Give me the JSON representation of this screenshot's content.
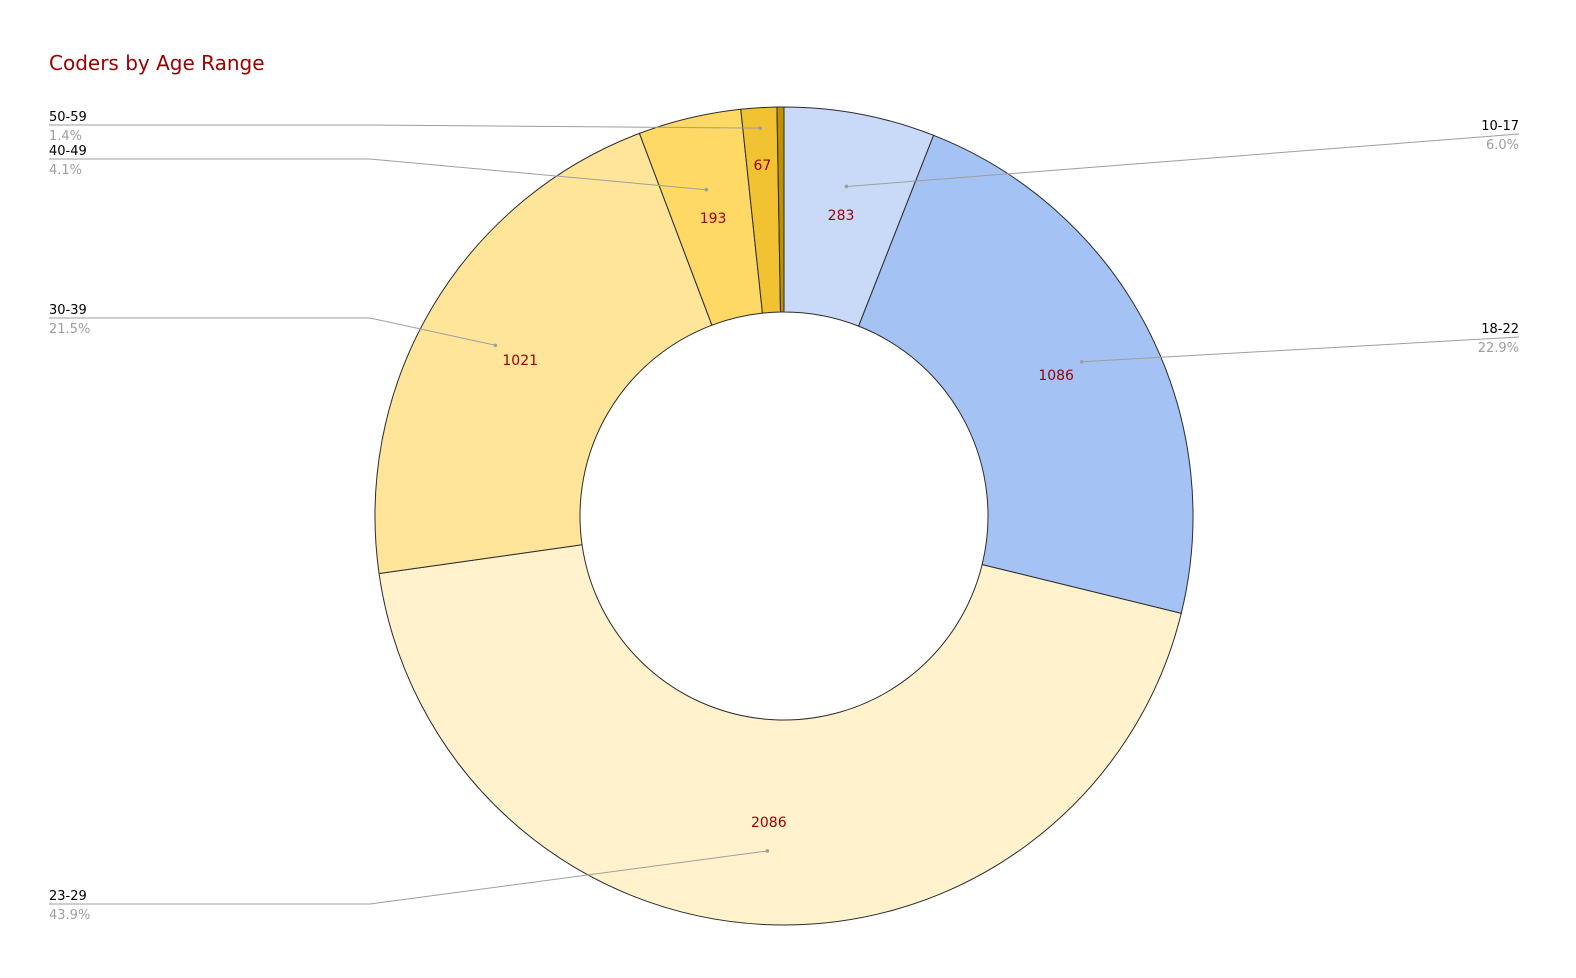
{
  "chart_data": {
    "type": "pie",
    "donut": true,
    "title": "Coders by Age Range",
    "legend_placement": "labeled-leaders",
    "title_color": "#990000",
    "value_label_color": "#990000",
    "slices": [
      {
        "label": "10-17",
        "value": 283,
        "percent": "6.0%",
        "color": "#c9daf8"
      },
      {
        "label": "18-22",
        "value": 1086,
        "percent": "22.9%",
        "color": "#a4c2f4"
      },
      {
        "label": "23-29",
        "value": 2086,
        "percent": "43.9%",
        "color": "#fff2cc"
      },
      {
        "label": "30-39",
        "value": 1021,
        "percent": "21.5%",
        "color": "#ffe599"
      },
      {
        "label": "40-49",
        "value": 193,
        "percent": "4.1%",
        "color": "#ffd966"
      },
      {
        "label": "50-59",
        "value": 67,
        "percent": "1.4%",
        "color": "#f1c232"
      },
      {
        "label": "",
        "value": 13,
        "percent": "",
        "color": "#bf9000"
      }
    ]
  }
}
